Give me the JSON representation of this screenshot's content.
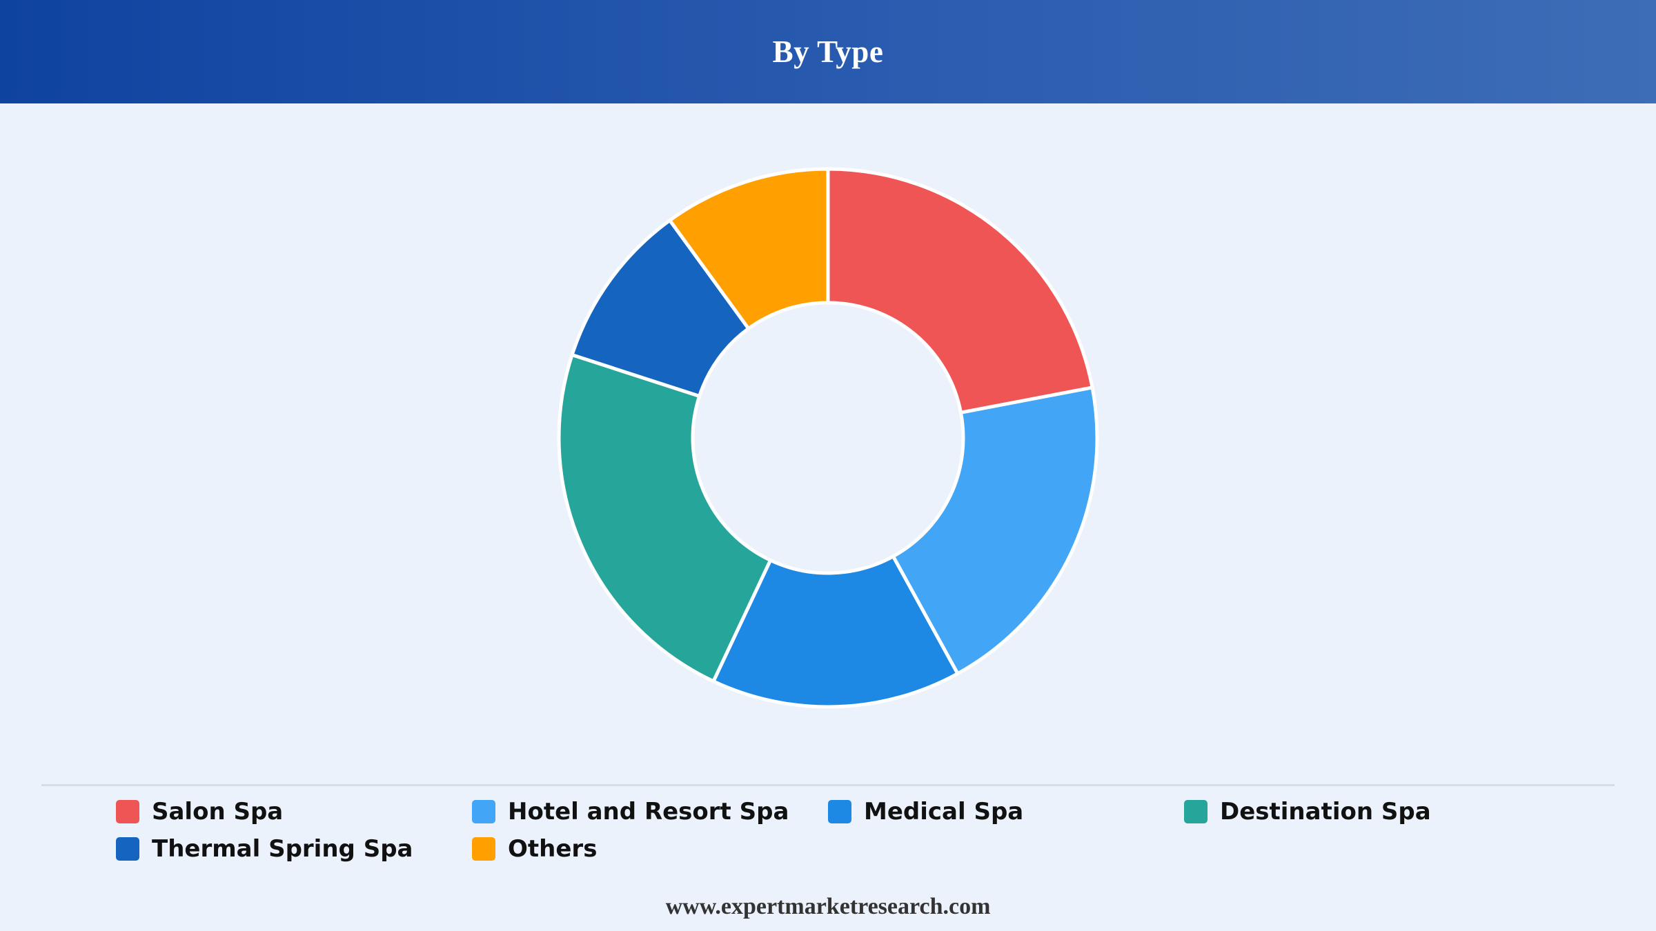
{
  "header": {
    "title": "By Type"
  },
  "chart_data": {
    "type": "pie",
    "variant": "donut",
    "title": "By Type",
    "legend_position": "bottom",
    "categories": [
      "Salon Spa",
      "Hotel and Resort Spa",
      "Medical Spa",
      "Destination Spa",
      "Thermal Spring Spa",
      "Others"
    ],
    "values": [
      22,
      20,
      15,
      23,
      10,
      10
    ],
    "colors": [
      "#ef5555",
      "#42a5f5",
      "#1e88e5",
      "#26a69a",
      "#1565c0",
      "#ffa000"
    ]
  },
  "footer": {
    "url": "www.expertmarketresearch.com"
  }
}
